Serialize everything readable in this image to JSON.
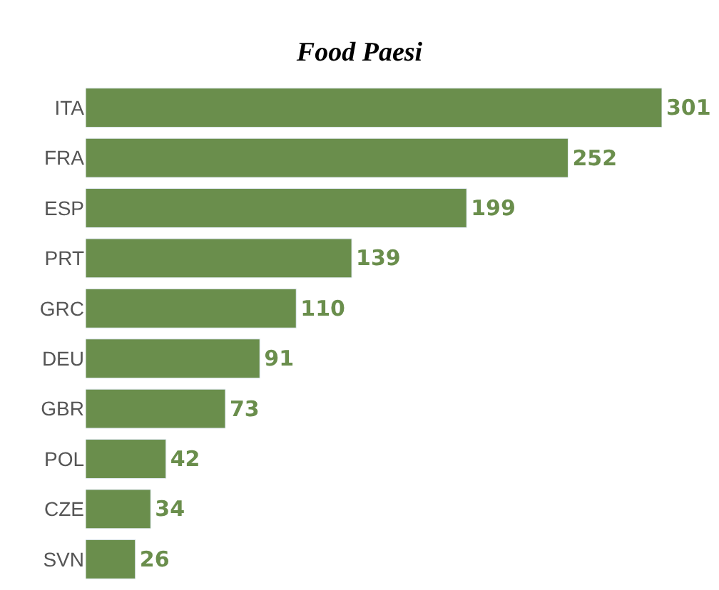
{
  "chart_data": {
    "type": "bar",
    "orientation": "horizontal",
    "title": "Food Paesi",
    "categories": [
      "ITA",
      "FRA",
      "ESP",
      "PRT",
      "GRC",
      "DEU",
      "GBR",
      "POL",
      "CZE",
      "SVN"
    ],
    "values": [
      301,
      252,
      199,
      139,
      110,
      91,
      73,
      42,
      34,
      26
    ],
    "color": "#6a8e4c",
    "data_labels": true
  }
}
